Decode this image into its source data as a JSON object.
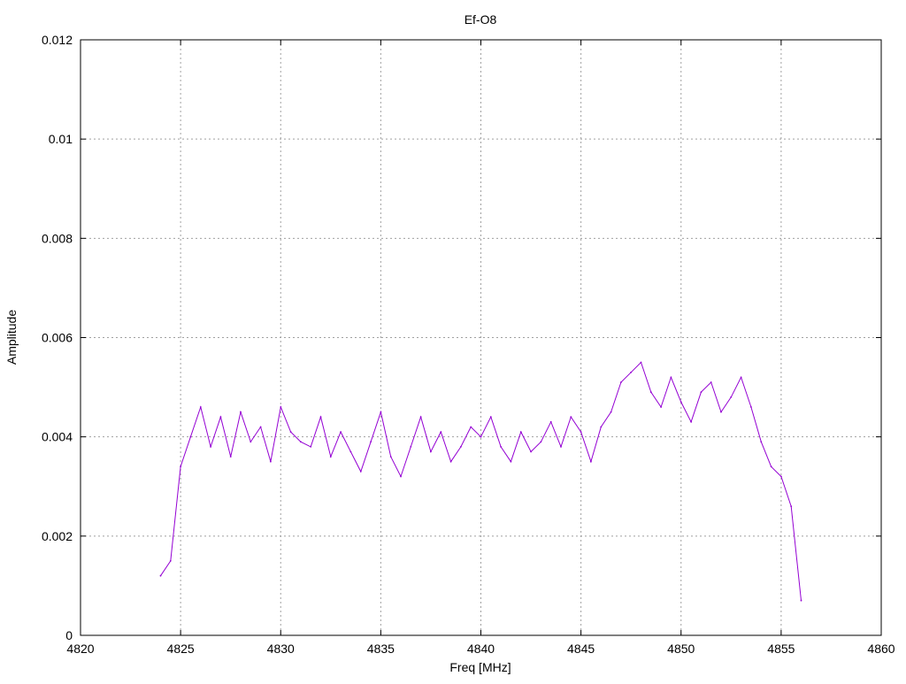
{
  "chart_data": {
    "type": "line",
    "title": "Ef-O8",
    "xlabel": "Freq [MHz]",
    "ylabel": "Amplitude",
    "xlim": [
      4820,
      4860
    ],
    "ylim": [
      0,
      0.012
    ],
    "x_ticks": [
      "4820",
      "4825",
      "4830",
      "4835",
      "4840",
      "4845",
      "4850",
      "4855",
      "4860"
    ],
    "y_ticks": [
      "0",
      "0.002",
      "0.004",
      "0.006",
      "0.008",
      "0.01",
      "0.012"
    ],
    "grid": true,
    "legend": "none",
    "series": [
      {
        "color": "#9400d3",
        "x": [
          4824.0,
          4824.5,
          4825.0,
          4825.5,
          4826.0,
          4826.5,
          4827.0,
          4827.5,
          4828.0,
          4828.5,
          4829.0,
          4829.5,
          4830.0,
          4830.5,
          4831.0,
          4831.5,
          4832.0,
          4832.5,
          4833.0,
          4833.5,
          4834.0,
          4834.5,
          4835.0,
          4835.5,
          4836.0,
          4836.5,
          4837.0,
          4837.5,
          4838.0,
          4838.5,
          4839.0,
          4839.5,
          4840.0,
          4840.5,
          4841.0,
          4841.5,
          4842.0,
          4842.5,
          4843.0,
          4843.5,
          4844.0,
          4844.5,
          4845.0,
          4845.5,
          4846.0,
          4846.5,
          4847.0,
          4847.5,
          4848.0,
          4848.5,
          4849.0,
          4849.5,
          4850.0,
          4850.5,
          4851.0,
          4851.5,
          4852.0,
          4852.5,
          4853.0,
          4853.5,
          4854.0,
          4854.5,
          4855.0,
          4855.5,
          4856.0
        ],
        "y": [
          0.0012,
          0.0015,
          0.0034,
          0.004,
          0.0046,
          0.0038,
          0.0044,
          0.0036,
          0.0045,
          0.0039,
          0.0042,
          0.0035,
          0.0046,
          0.0041,
          0.0039,
          0.0038,
          0.0044,
          0.0036,
          0.0041,
          0.0037,
          0.0033,
          0.0039,
          0.0045,
          0.0036,
          0.0032,
          0.0038,
          0.0044,
          0.0037,
          0.0041,
          0.0035,
          0.0038,
          0.0042,
          0.004,
          0.0044,
          0.0038,
          0.0035,
          0.0041,
          0.0037,
          0.0039,
          0.0043,
          0.0038,
          0.0044,
          0.0041,
          0.0035,
          0.0042,
          0.0045,
          0.0051,
          0.0053,
          0.0055,
          0.0049,
          0.0046,
          0.0052,
          0.0047,
          0.0043,
          0.0049,
          0.0051,
          0.0045,
          0.0048,
          0.0052,
          0.0046,
          0.0039,
          0.0034,
          0.0032,
          0.0026,
          0.0007
        ]
      }
    ]
  }
}
